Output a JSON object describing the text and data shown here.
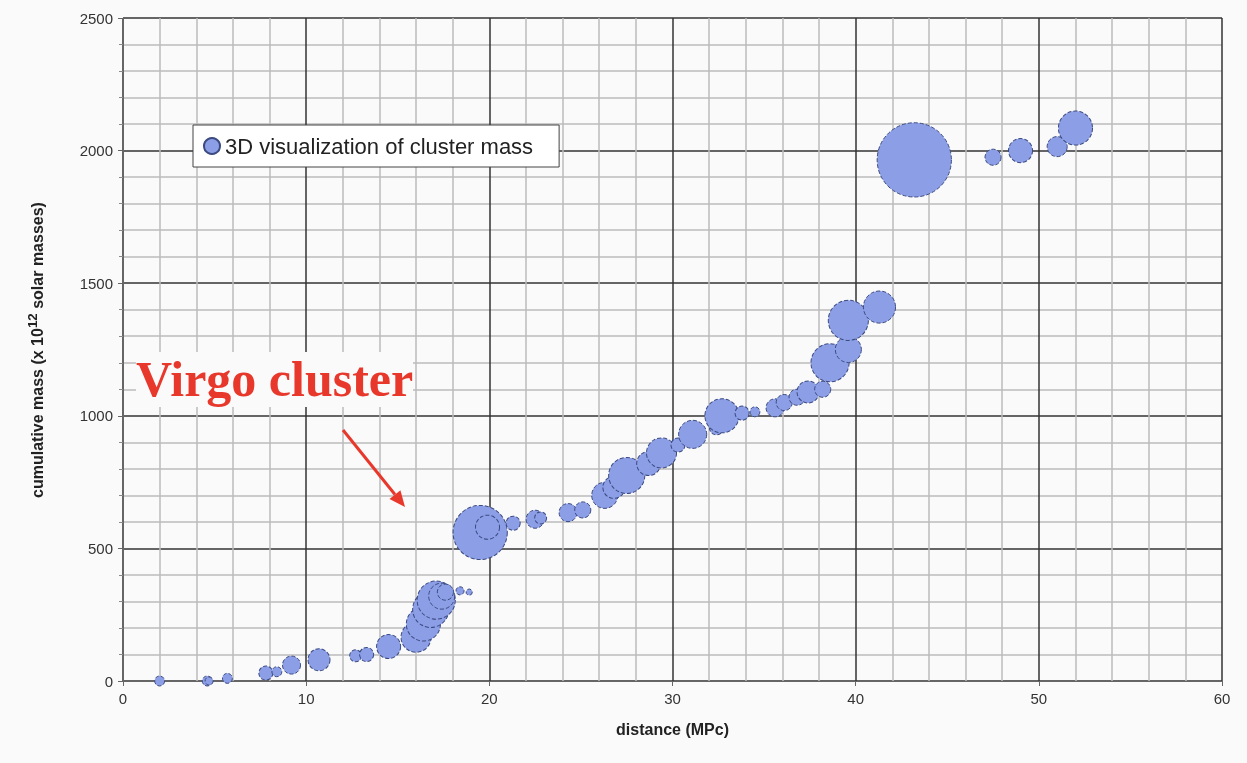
{
  "chart_data": {
    "type": "bubble",
    "xlabel": "distance (MPc)",
    "ylabel": "cumulative mass (x 10$^{12}$ solar masses)",
    "annotations": [
      "Virgo cluster"
    ],
    "xlim": [
      0,
      60
    ],
    "xticks": [
      0,
      10,
      20,
      30,
      40,
      50,
      60
    ],
    "ylim": [
      0,
      2500
    ],
    "yticks": [
      0,
      500,
      1000,
      1500,
      2000,
      2500
    ],
    "grid": true,
    "legend": "top left",
    "marker": "circle",
    "series": [
      {
        "name": "3D visualization of cluster mass",
        "color": "#8c9ee6",
        "x": [
          2.0,
          4.6,
          4.7,
          5.7,
          7.8,
          8.4,
          9.2,
          10.7,
          12.7,
          13.3,
          14.5,
          16.0,
          16.4,
          16.8,
          17.1,
          17.4,
          17.6,
          18.4,
          18.9,
          19.5,
          19.9,
          21.3,
          22.5,
          22.8,
          24.3,
          25.1,
          26.3,
          26.8,
          27.5,
          28.7,
          29.4,
          30.3,
          31.1,
          32.4,
          32.7,
          33.8,
          34.5,
          35.6,
          36.1,
          36.8,
          37.4,
          38.2,
          38.6,
          39.6,
          39.6,
          41.3,
          43.2,
          47.5,
          49.0,
          51.0,
          52.0
        ],
        "values": [
          0,
          0,
          0,
          10,
          30,
          35,
          60,
          80,
          95,
          100,
          130,
          165,
          215,
          270,
          305,
          320,
          335,
          340,
          335,
          560,
          580,
          595,
          610,
          615,
          635,
          645,
          700,
          730,
          775,
          820,
          860,
          890,
          930,
          955,
          1000,
          1010,
          1015,
          1030,
          1050,
          1070,
          1090,
          1100,
          1200,
          1250,
          1360,
          1410,
          1965,
          1975,
          2000,
          2015,
          2085
        ],
        "sizes": [
          0.018,
          0.018,
          0.012,
          0.018,
          0.036,
          0.018,
          0.059,
          0.088,
          0.026,
          0.036,
          0.105,
          0.164,
          0.211,
          0.237,
          0.264,
          0.123,
          0.047,
          0.012,
          0.007,
          0.533,
          0.105,
          0.036,
          0.059,
          0.026,
          0.059,
          0.047,
          0.123,
          0.088,
          0.237,
          0.105,
          0.164,
          0.036,
          0.143,
          0.036,
          0.211,
          0.036,
          0.018,
          0.059,
          0.047,
          0.047,
          0.088,
          0.047,
          0.264,
          0.123,
          0.292,
          0.187,
          1,
          0.047,
          0.105,
          0.073,
          0.211
        ]
      }
    ]
  }
}
